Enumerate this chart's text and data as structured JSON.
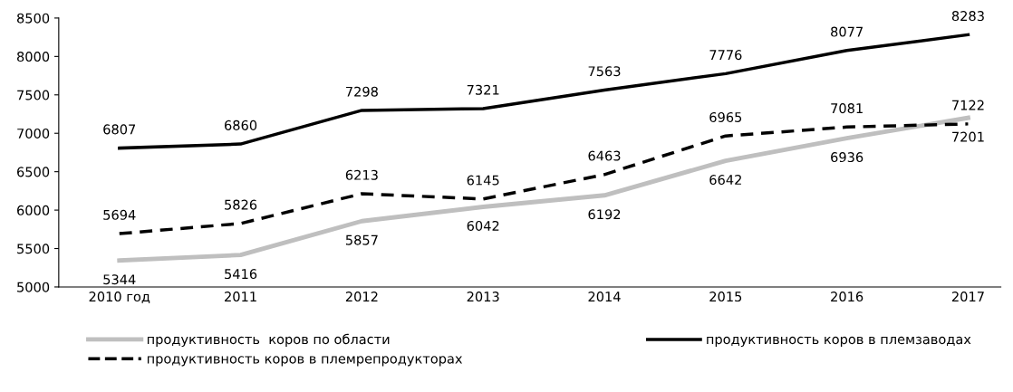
{
  "chart_data": {
    "type": "line",
    "categories": [
      "2010 год",
      "2011",
      "2012",
      "2013",
      "2014",
      "2015",
      "2016",
      "2017"
    ],
    "series": [
      {
        "name": "продуктивность  коров по области",
        "color": "#bfbfbf",
        "line_style": "solid",
        "values": [
          5344,
          5416,
          5857,
          6042,
          6192,
          6642,
          6936,
          7201
        ]
      },
      {
        "name": "продуктивность коров в племзаводах",
        "color": "#000000",
        "line_style": "solid",
        "values": [
          6807,
          6860,
          7298,
          7321,
          7563,
          7776,
          8077,
          8283
        ]
      },
      {
        "name": "продуктивность коров в племрепродукторах",
        "color": "#000000",
        "line_style": "dashed",
        "values": [
          5694,
          5826,
          6213,
          6145,
          6463,
          6965,
          7081,
          7122
        ]
      }
    ],
    "ylim": [
      5000,
      8500
    ],
    "yticks": [
      5000,
      5500,
      6000,
      6500,
      7000,
      7500,
      8000,
      8500
    ],
    "data_labels": true,
    "grid": false,
    "legend": "bottom",
    "marker": "none"
  }
}
